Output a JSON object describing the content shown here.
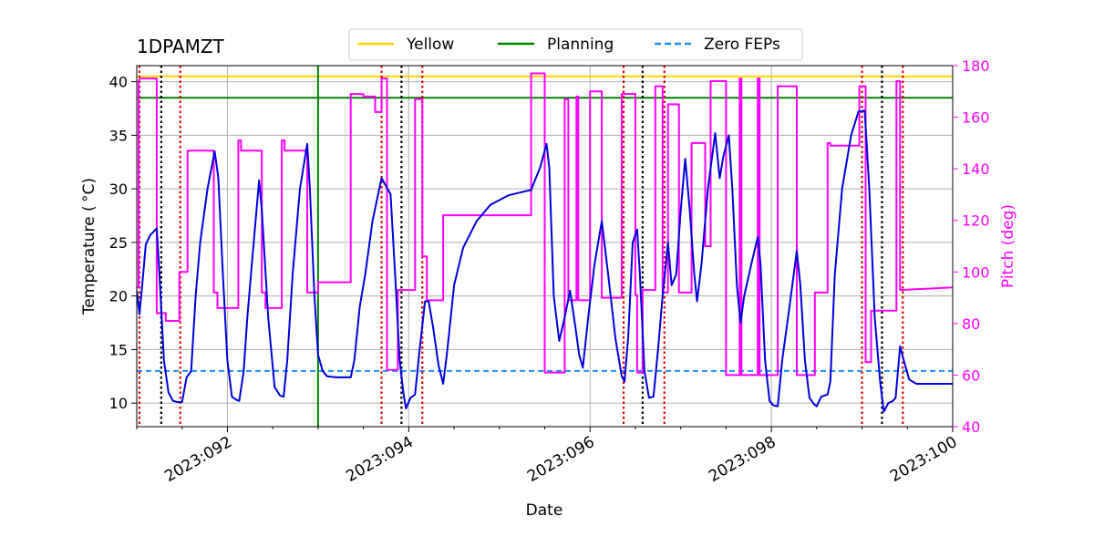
{
  "chart_data": {
    "type": "line",
    "title": "1DPAMZT",
    "xlabel": "Date",
    "ylabel": "Temperature ($^\\circ$C)",
    "ylabel_display": "Temperature ( °C)",
    "y2label": "Pitch (deg)",
    "xlim": [
      91.0,
      100.0
    ],
    "ylim": [
      7.8,
      41.5
    ],
    "y2lim": [
      40,
      180
    ],
    "x_ticks": [
      {
        "value": 92,
        "label": "2023:092"
      },
      {
        "value": 94,
        "label": "2023:094"
      },
      {
        "value": 96,
        "label": "2023:096"
      },
      {
        "value": 98,
        "label": "2023:098"
      },
      {
        "value": 100,
        "label": "2023:100"
      }
    ],
    "x_minor_ticks": [
      91.0,
      91.5,
      92.5,
      93.0,
      93.5,
      94.5,
      95.0,
      95.5,
      96.5,
      97.0,
      97.5,
      98.5,
      99.0,
      99.5
    ],
    "y_ticks": [
      {
        "value": 10,
        "label": "10"
      },
      {
        "value": 15,
        "label": "15"
      },
      {
        "value": 20,
        "label": "20"
      },
      {
        "value": 25,
        "label": "25"
      },
      {
        "value": 30,
        "label": "30"
      },
      {
        "value": 35,
        "label": "35"
      },
      {
        "value": 40,
        "label": "40"
      }
    ],
    "y2_ticks": [
      {
        "value": 40,
        "label": "40"
      },
      {
        "value": 60,
        "label": "60"
      },
      {
        "value": 80,
        "label": "80"
      },
      {
        "value": 100,
        "label": "100"
      },
      {
        "value": 120,
        "label": "120"
      },
      {
        "value": 140,
        "label": "140"
      },
      {
        "value": 160,
        "label": "160"
      },
      {
        "value": 180,
        "label": "180"
      }
    ],
    "grid": true,
    "legend": [
      {
        "label": "Yellow",
        "color": "#ffd700",
        "style": "solid"
      },
      {
        "label": "Planning",
        "color": "#008000",
        "style": "solid"
      },
      {
        "label": "Zero FEPs",
        "color": "#1e90ff",
        "style": "dashed"
      }
    ],
    "hlines": [
      {
        "name": "Yellow",
        "y": 40.5,
        "color": "#ffd700"
      },
      {
        "name": "Planning",
        "y": 38.5,
        "color": "#008000"
      },
      {
        "name": "Zero FEPs",
        "y": 13.0,
        "color": "#1e90ff",
        "dash": "6,4"
      }
    ],
    "planning_vline": {
      "x": 93.0,
      "color": "#008000"
    },
    "red_vlines": [
      91.03,
      91.48,
      93.7,
      94.15,
      96.37,
      96.82,
      99.0,
      99.45
    ],
    "black_vlines": [
      91.27,
      93.92,
      96.58,
      99.22
    ],
    "series": [
      {
        "name": "Temperature",
        "axis": "left",
        "color": "#0000dd",
        "points": [
          [
            91.0,
            20.5
          ],
          [
            91.03,
            18.3
          ],
          [
            91.06,
            21
          ],
          [
            91.1,
            24.8
          ],
          [
            91.15,
            25.7
          ],
          [
            91.22,
            26.3
          ],
          [
            91.25,
            22
          ],
          [
            91.3,
            14
          ],
          [
            91.35,
            11
          ],
          [
            91.4,
            10.2
          ],
          [
            91.45,
            10.1
          ],
          [
            91.5,
            10.1
          ],
          [
            91.55,
            12.4
          ],
          [
            91.6,
            13
          ],
          [
            91.65,
            20
          ],
          [
            91.7,
            25
          ],
          [
            91.78,
            30
          ],
          [
            91.86,
            33.5
          ],
          [
            91.9,
            31
          ],
          [
            91.95,
            22
          ],
          [
            92.0,
            14
          ],
          [
            92.05,
            10.6
          ],
          [
            92.1,
            10.3
          ],
          [
            92.13,
            10.2
          ],
          [
            92.18,
            13
          ],
          [
            92.22,
            18
          ],
          [
            92.28,
            24
          ],
          [
            92.35,
            30.8
          ],
          [
            92.38,
            28
          ],
          [
            92.45,
            18
          ],
          [
            92.52,
            11.5
          ],
          [
            92.58,
            10.7
          ],
          [
            92.62,
            10.6
          ],
          [
            92.66,
            14
          ],
          [
            92.72,
            22
          ],
          [
            92.8,
            30
          ],
          [
            92.88,
            34.2
          ],
          [
            92.91,
            30
          ],
          [
            92.96,
            20
          ],
          [
            93.0,
            14.5
          ],
          [
            93.05,
            13
          ],
          [
            93.1,
            12.5
          ],
          [
            93.2,
            12.4
          ],
          [
            93.36,
            12.4
          ],
          [
            93.4,
            14
          ],
          [
            93.46,
            19
          ],
          [
            93.52,
            22
          ],
          [
            93.6,
            27
          ],
          [
            93.7,
            31
          ],
          [
            93.8,
            29.5
          ],
          [
            93.85,
            22
          ],
          [
            93.9,
            14
          ],
          [
            93.94,
            11
          ],
          [
            93.97,
            9.5
          ],
          [
            94.02,
            10.5
          ],
          [
            94.07,
            10.8
          ],
          [
            94.12,
            15
          ],
          [
            94.18,
            19.5
          ],
          [
            94.22,
            19.5
          ],
          [
            94.27,
            17
          ],
          [
            94.33,
            13.5
          ],
          [
            94.38,
            11.8
          ],
          [
            94.42,
            14.5
          ],
          [
            94.5,
            21
          ],
          [
            94.6,
            24.5
          ],
          [
            94.75,
            27
          ],
          [
            94.9,
            28.5
          ],
          [
            95.1,
            29.4
          ],
          [
            95.35,
            29.9
          ],
          [
            95.45,
            32
          ],
          [
            95.52,
            34.2
          ],
          [
            95.55,
            32
          ],
          [
            95.6,
            20
          ],
          [
            95.66,
            15.8
          ],
          [
            95.72,
            18
          ],
          [
            95.78,
            20.5
          ],
          [
            95.84,
            17
          ],
          [
            95.88,
            14.5
          ],
          [
            95.92,
            13.3
          ],
          [
            95.98,
            18
          ],
          [
            96.05,
            23
          ],
          [
            96.13,
            27
          ],
          [
            96.2,
            22
          ],
          [
            96.28,
            16
          ],
          [
            96.35,
            12.5
          ],
          [
            96.38,
            12
          ],
          [
            96.42,
            16
          ],
          [
            96.47,
            25
          ],
          [
            96.52,
            26.2
          ],
          [
            96.55,
            22
          ],
          [
            96.6,
            13
          ],
          [
            96.65,
            10.5
          ],
          [
            96.7,
            10.6
          ],
          [
            96.75,
            15
          ],
          [
            96.8,
            20
          ],
          [
            96.86,
            25
          ],
          [
            96.9,
            21
          ],
          [
            96.95,
            22
          ],
          [
            97.0,
            28
          ],
          [
            97.05,
            32.8
          ],
          [
            97.1,
            28
          ],
          [
            97.15,
            22
          ],
          [
            97.18,
            19.5
          ],
          [
            97.23,
            23
          ],
          [
            97.3,
            30
          ],
          [
            97.38,
            35.2
          ],
          [
            97.43,
            31
          ],
          [
            97.47,
            33
          ],
          [
            97.53,
            35
          ],
          [
            97.57,
            30
          ],
          [
            97.62,
            21
          ],
          [
            97.66,
            17.5
          ],
          [
            97.7,
            20
          ],
          [
            97.78,
            23
          ],
          [
            97.85,
            25.5
          ],
          [
            97.88,
            23
          ],
          [
            97.93,
            14
          ],
          [
            97.98,
            10.2
          ],
          [
            98.02,
            9.8
          ],
          [
            98.07,
            9.7
          ],
          [
            98.12,
            14
          ],
          [
            98.2,
            19
          ],
          [
            98.28,
            24.2
          ],
          [
            98.32,
            21
          ],
          [
            98.37,
            14
          ],
          [
            98.42,
            10.5
          ],
          [
            98.47,
            9.9
          ],
          [
            98.5,
            9.7
          ],
          [
            98.55,
            10.6
          ],
          [
            98.62,
            10.8
          ],
          [
            98.65,
            12
          ],
          [
            98.7,
            22
          ],
          [
            98.78,
            30
          ],
          [
            98.88,
            35
          ],
          [
            98.96,
            37.2
          ],
          [
            99.03,
            37.3
          ],
          [
            99.08,
            30
          ],
          [
            99.14,
            18
          ],
          [
            99.2,
            12
          ],
          [
            99.24,
            9.2
          ],
          [
            99.29,
            10
          ],
          [
            99.34,
            10.2
          ],
          [
            99.37,
            10.5
          ],
          [
            99.42,
            15.3
          ],
          [
            99.46,
            14
          ],
          [
            99.52,
            12.2
          ],
          [
            99.6,
            11.8
          ],
          [
            99.8,
            11.8
          ],
          [
            100.0,
            11.8
          ]
        ]
      },
      {
        "name": "Pitch",
        "axis": "right",
        "color": "#ff00ff",
        "points": [
          [
            91.0,
            94
          ],
          [
            91.02,
            94
          ],
          [
            91.02,
            174
          ],
          [
            91.04,
            175
          ],
          [
            91.2,
            175
          ],
          [
            91.22,
            175
          ],
          [
            91.22,
            84
          ],
          [
            91.32,
            84
          ],
          [
            91.32,
            81
          ],
          [
            91.47,
            81
          ],
          [
            91.47,
            100
          ],
          [
            91.56,
            100
          ],
          [
            91.56,
            147
          ],
          [
            91.85,
            147
          ],
          [
            91.85,
            92
          ],
          [
            91.89,
            92
          ],
          [
            91.89,
            86
          ],
          [
            92.12,
            86
          ],
          [
            92.12,
            151
          ],
          [
            92.15,
            151
          ],
          [
            92.15,
            147
          ],
          [
            92.38,
            147
          ],
          [
            92.38,
            92
          ],
          [
            92.42,
            92
          ],
          [
            92.42,
            86
          ],
          [
            92.6,
            86
          ],
          [
            92.6,
            151
          ],
          [
            92.63,
            151
          ],
          [
            92.63,
            147
          ],
          [
            92.88,
            147
          ],
          [
            92.88,
            92
          ],
          [
            93.0,
            92
          ],
          [
            93.0,
            96
          ],
          [
            93.36,
            96
          ],
          [
            93.36,
            169
          ],
          [
            93.5,
            169
          ],
          [
            93.5,
            168
          ],
          [
            93.63,
            168
          ],
          [
            93.63,
            162
          ],
          [
            93.7,
            162
          ],
          [
            93.7,
            175
          ],
          [
            93.76,
            175
          ],
          [
            93.76,
            62
          ],
          [
            93.88,
            62
          ],
          [
            93.88,
            93
          ],
          [
            94.07,
            93
          ],
          [
            94.07,
            167
          ],
          [
            94.15,
            167
          ],
          [
            94.15,
            106
          ],
          [
            94.2,
            106
          ],
          [
            94.2,
            89
          ],
          [
            94.38,
            89
          ],
          [
            94.38,
            122
          ],
          [
            95.35,
            122
          ],
          [
            95.35,
            177
          ],
          [
            95.5,
            177
          ],
          [
            95.5,
            61
          ],
          [
            95.72,
            61
          ],
          [
            95.72,
            167
          ],
          [
            95.76,
            167
          ],
          [
            95.76,
            89
          ],
          [
            95.85,
            89
          ],
          [
            95.85,
            168
          ],
          [
            95.87,
            168
          ],
          [
            95.87,
            89
          ],
          [
            96.0,
            89
          ],
          [
            96.0,
            170
          ],
          [
            96.13,
            170
          ],
          [
            96.13,
            90
          ],
          [
            96.35,
            90
          ],
          [
            96.35,
            169
          ],
          [
            96.5,
            169
          ],
          [
            96.5,
            91
          ],
          [
            96.52,
            91
          ],
          [
            96.52,
            61
          ],
          [
            96.58,
            61
          ],
          [
            96.58,
            93
          ],
          [
            96.72,
            93
          ],
          [
            96.72,
            172
          ],
          [
            96.8,
            172
          ],
          [
            96.8,
            92
          ],
          [
            96.86,
            92
          ],
          [
            96.86,
            165
          ],
          [
            96.98,
            165
          ],
          [
            96.98,
            92
          ],
          [
            97.12,
            92
          ],
          [
            97.12,
            150
          ],
          [
            97.27,
            150
          ],
          [
            97.27,
            110
          ],
          [
            97.33,
            110
          ],
          [
            97.33,
            174
          ],
          [
            97.5,
            174
          ],
          [
            97.5,
            60
          ],
          [
            97.65,
            60
          ],
          [
            97.65,
            175
          ],
          [
            97.67,
            175
          ],
          [
            97.67,
            60
          ],
          [
            97.85,
            60
          ],
          [
            97.85,
            175
          ],
          [
            97.87,
            175
          ],
          [
            97.87,
            60
          ],
          [
            98.07,
            60
          ],
          [
            98.07,
            172
          ],
          [
            98.28,
            172
          ],
          [
            98.28,
            60
          ],
          [
            98.48,
            60
          ],
          [
            98.48,
            92
          ],
          [
            98.62,
            92
          ],
          [
            98.62,
            150
          ],
          [
            98.65,
            150
          ],
          [
            98.65,
            149
          ],
          [
            98.97,
            149
          ],
          [
            98.97,
            172
          ],
          [
            99.04,
            172
          ],
          [
            99.04,
            65
          ],
          [
            99.1,
            65
          ],
          [
            99.1,
            85
          ],
          [
            99.38,
            85
          ],
          [
            99.38,
            174
          ],
          [
            99.42,
            174
          ],
          [
            99.42,
            93
          ],
          [
            100.0,
            94
          ]
        ]
      }
    ]
  }
}
